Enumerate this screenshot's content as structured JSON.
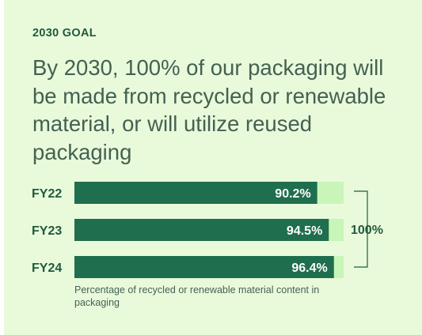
{
  "eyebrow": "2030 GOAL",
  "headline": "By 2030, 100% of our packaging will be made from recycled or renewable material, or will utilize reused packaging",
  "caption": "Percentage of recycled or renewable material content in packaging",
  "colors": {
    "background": "#e9fadb",
    "bar": "#1f6e4d",
    "track": "#c9f5b9",
    "text_dark": "#1f5b3e",
    "bar_label": "#ffffff"
  },
  "chart_data": {
    "type": "bar",
    "orientation": "horizontal",
    "categories": [
      "FY22",
      "FY23",
      "FY24"
    ],
    "values": [
      90.2,
      94.5,
      96.4
    ],
    "value_labels": [
      "90.2%",
      "94.5%",
      "96.4%"
    ],
    "xlim": [
      0,
      100
    ],
    "target_value": 100,
    "target_label": "100%",
    "grid": false,
    "legend": "none"
  }
}
